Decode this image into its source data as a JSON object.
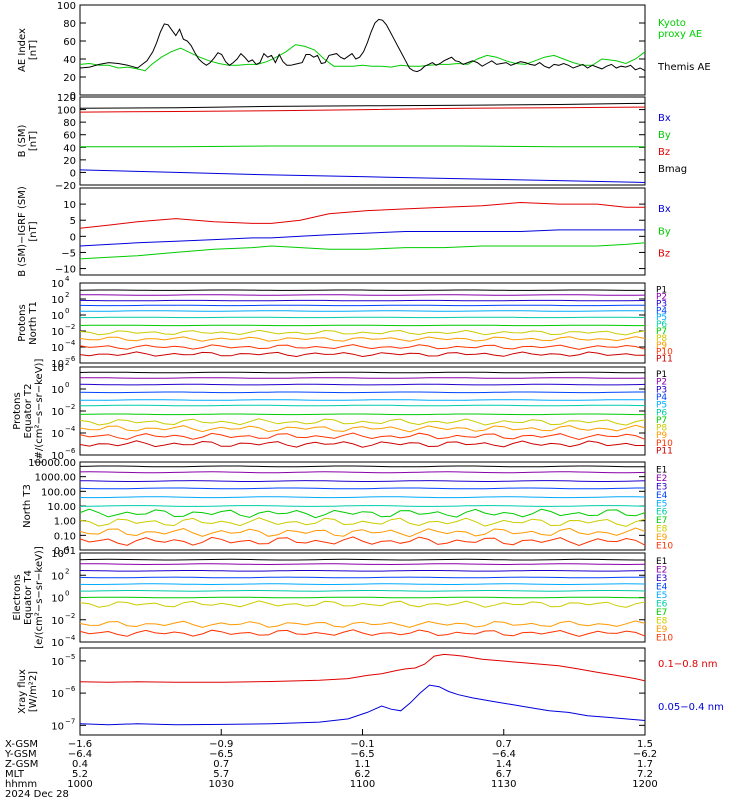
{
  "colors": {
    "black": "#000000",
    "red": "#e00000",
    "green": "#00cc00",
    "blue": "#0000dd",
    "kyoto": "#00dd00",
    "ch": [
      "#000000",
      "#8800aa",
      "#2200cc",
      "#0044ff",
      "#00aaff",
      "#00ccaa",
      "#00cc00",
      "#cccc00",
      "#ff9900",
      "#ff3300",
      "#cc0000",
      "#aa0000"
    ]
  },
  "chart_data": [
    {
      "id": "ae",
      "type": "line",
      "ylabel": [
        "AE Index",
        "[nT]"
      ],
      "ylim": [
        0,
        100
      ],
      "yticks": [
        "100",
        "80",
        "60",
        "40",
        "20",
        "0"
      ],
      "legend": [
        {
          "text": "Kyoto",
          "color": "green"
        },
        {
          "text": "proxy AE",
          "color": "green"
        },
        {
          "text": "Themis AE",
          "color": "black"
        }
      ],
      "series": [
        {
          "name": "Kyoto proxy AE",
          "color": "green",
          "x": [
            0,
            10,
            20,
            30,
            40,
            50,
            60,
            68,
            75,
            85,
            95,
            105,
            115,
            125,
            135,
            145,
            155,
            165,
            175,
            185,
            195,
            205,
            215,
            225,
            235,
            245,
            255,
            265,
            275,
            285,
            295,
            305,
            315,
            325,
            335,
            345,
            355,
            365,
            375,
            385,
            395,
            405,
            415,
            425,
            435,
            445,
            455,
            465,
            475,
            485,
            495,
            505,
            515,
            525,
            535,
            545,
            560,
            570,
            580,
            590
          ],
          "y": [
            34,
            35,
            33,
            33,
            30,
            31,
            29,
            27,
            34,
            42,
            48,
            52,
            47,
            42,
            38,
            35,
            33,
            33,
            34,
            34,
            37,
            42,
            48,
            56,
            54,
            50,
            40,
            32,
            32,
            32,
            33,
            32,
            32,
            31,
            33,
            32,
            32,
            33,
            34,
            34,
            35,
            34,
            40,
            44,
            42,
            38,
            35,
            34,
            38,
            42,
            44,
            40,
            36,
            33,
            33,
            40,
            38,
            35,
            40,
            48
          ]
        },
        {
          "name": "Themis AE",
          "color": "black",
          "x": [
            0,
            10,
            20,
            30,
            40,
            50,
            60,
            70,
            76,
            80,
            84,
            88,
            92,
            96,
            100,
            104,
            108,
            112,
            116,
            120,
            124,
            128,
            132,
            136,
            140,
            144,
            148,
            152,
            156,
            160,
            164,
            168,
            172,
            176,
            180,
            184,
            188,
            192,
            196,
            200,
            204,
            208,
            212,
            216,
            220,
            224,
            228,
            232,
            236,
            240,
            244,
            248,
            252,
            256,
            260,
            264,
            268,
            272,
            276,
            280,
            284,
            288,
            292,
            296,
            300,
            304,
            308,
            312,
            316,
            320,
            324,
            328,
            332,
            336,
            340,
            344,
            348,
            352,
            356,
            360,
            364,
            368,
            372,
            376,
            380,
            384,
            388,
            392,
            396,
            400,
            405,
            410,
            415,
            420,
            425,
            430,
            435,
            440,
            445,
            450,
            455,
            460,
            465,
            470,
            475,
            480,
            485,
            490,
            495,
            500,
            505,
            510,
            515,
            520,
            525,
            530,
            535,
            540,
            545,
            550,
            555,
            560,
            565,
            570,
            575,
            580,
            585,
            590
          ],
          "y": [
            30,
            31,
            34,
            36,
            35,
            33,
            30,
            38,
            48,
            58,
            70,
            79,
            78,
            72,
            66,
            73,
            62,
            60,
            55,
            47,
            40,
            36,
            33,
            36,
            41,
            47,
            45,
            37,
            33,
            36,
            40,
            46,
            42,
            37,
            39,
            34,
            36,
            46,
            42,
            44,
            36,
            45,
            37,
            33,
            33,
            34,
            35,
            36,
            45,
            45,
            42,
            44,
            35,
            36,
            44,
            45,
            46,
            42,
            40,
            43,
            46,
            40,
            42,
            48,
            58,
            70,
            80,
            84,
            83,
            78,
            70,
            62,
            54,
            46,
            38,
            30,
            27,
            26,
            28,
            32,
            34,
            36,
            33,
            35,
            38,
            40,
            42,
            38,
            37,
            34,
            36,
            38,
            36,
            32,
            35,
            38,
            34,
            35,
            36,
            33,
            35,
            37,
            36,
            34,
            33,
            36,
            32,
            30,
            34,
            33,
            35,
            33,
            30,
            32,
            34,
            30,
            33,
            31,
            29,
            32,
            34,
            30,
            32,
            31,
            33,
            28,
            30,
            27
          ]
        }
      ]
    },
    {
      "id": "bsm",
      "type": "line",
      "ylabel": [
        "B  (SM)",
        "[nT]"
      ],
      "ylabel_sub": "s",
      "ylim": [
        -20,
        120
      ],
      "yticks": [
        "120",
        "100",
        "80",
        "60",
        "40",
        "20",
        "0",
        "−20"
      ],
      "legend": [
        {
          "text": "Bx",
          "color": "blue"
        },
        {
          "text": "By",
          "color": "green"
        },
        {
          "text": "Bz",
          "color": "red"
        },
        {
          "text": "Bmag",
          "color": "black"
        }
      ],
      "series": [
        {
          "name": "Bmag",
          "color": "black",
          "x": [
            0,
            100,
            200,
            300,
            400,
            500,
            590
          ],
          "y": [
            102,
            103,
            105,
            106,
            107,
            108,
            110
          ]
        },
        {
          "name": "Bz",
          "color": "red",
          "x": [
            0,
            100,
            200,
            300,
            400,
            500,
            590
          ],
          "y": [
            96,
            97,
            98,
            100,
            102,
            103,
            104
          ]
        },
        {
          "name": "By",
          "color": "green",
          "x": [
            0,
            100,
            200,
            300,
            400,
            500,
            590
          ],
          "y": [
            41,
            41,
            42,
            42,
            42,
            41,
            41
          ]
        },
        {
          "name": "Bx",
          "color": "blue",
          "x": [
            0,
            100,
            200,
            300,
            400,
            500,
            590
          ],
          "y": [
            4,
            0,
            -4,
            -7,
            -10,
            -13,
            -16
          ]
        }
      ]
    },
    {
      "id": "bigrf",
      "type": "line",
      "ylabel": [
        "B (SM)−IGRF (SM)",
        "[nT]"
      ],
      "ylim": [
        -12,
        15
      ],
      "yticks": [
        "10",
        "5",
        "0",
        "−5",
        "−10"
      ],
      "legend": [
        {
          "text": "Bx",
          "color": "blue"
        },
        {
          "text": "By",
          "color": "green"
        },
        {
          "text": "Bz",
          "color": "red"
        }
      ],
      "series": [
        {
          "name": "Bz",
          "color": "red",
          "x": [
            0,
            30,
            60,
            100,
            140,
            180,
            200,
            230,
            260,
            300,
            340,
            380,
            420,
            460,
            500,
            540,
            570,
            590
          ],
          "y": [
            2.5,
            3.5,
            4.5,
            5.5,
            4.5,
            4,
            4,
            5,
            7,
            8,
            8.5,
            9,
            9.5,
            10.5,
            10,
            10,
            9,
            9
          ]
        },
        {
          "name": "By",
          "color": "green",
          "x": [
            0,
            30,
            60,
            100,
            140,
            180,
            200,
            230,
            260,
            300,
            340,
            380,
            420,
            460,
            500,
            540,
            570,
            590
          ],
          "y": [
            -7,
            -6.5,
            -6,
            -5,
            -4,
            -3.5,
            -3,
            -3.5,
            -4,
            -4,
            -3.5,
            -3.5,
            -3,
            -3,
            -3,
            -3,
            -2.5,
            -2
          ]
        },
        {
          "name": "Bx",
          "color": "blue",
          "x": [
            0,
            30,
            60,
            100,
            140,
            180,
            200,
            230,
            260,
            300,
            340,
            380,
            420,
            460,
            500,
            540,
            570,
            590
          ],
          "y": [
            -3,
            -2.5,
            -2,
            -1.5,
            -1,
            -0.5,
            -0.5,
            0,
            0.5,
            1,
            1.5,
            1.5,
            1.5,
            1.5,
            2,
            2,
            2,
            2
          ]
        }
      ]
    },
    {
      "id": "pn",
      "type": "line",
      "log": true,
      "ylabel": [
        "Protons",
        "North T1"
      ],
      "ylim": [
        -6,
        4
      ],
      "yticks": [
        {
          "e": "4",
          "v": 4
        },
        {
          "e": "2",
          "v": 2
        },
        {
          "e": "0",
          "v": 0
        },
        {
          "e": "−2",
          "v": -2
        },
        {
          "e": "−4",
          "v": -4
        },
        {
          "e": "−6",
          "v": -6
        }
      ],
      "labels": [
        "P1",
        "P2",
        "P3",
        "P4",
        "P5",
        "P6",
        "P7",
        "P8",
        "P9",
        "P10",
        "P11"
      ],
      "series_levels": [
        3.1,
        2.5,
        1.8,
        1.2,
        0.5,
        -0.3,
        -1.3,
        -2.2,
        -3.0,
        -4.0,
        -4.9
      ]
    },
    {
      "id": "pe",
      "type": "line",
      "log": true,
      "ylabel": [
        "Protons",
        "Equator T2",
        "[#/(cm²−s−sr−keV)]"
      ],
      "ylim": [
        -6,
        2
      ],
      "yticks": [
        {
          "e": "2",
          "v": 2
        },
        {
          "e": "0",
          "v": 0
        },
        {
          "e": "−2",
          "v": -2
        },
        {
          "e": "−4",
          "v": -4
        },
        {
          "e": "−6",
          "v": -6
        }
      ],
      "labels": [
        "P1",
        "P2",
        "P3",
        "P4",
        "P5",
        "P6",
        "P7",
        "P8",
        "P9",
        "P10",
        "P11"
      ],
      "series_levels": [
        1.5,
        1.0,
        0.4,
        -0.3,
        -1.0,
        -1.5,
        -2.3,
        -3.0,
        -3.6,
        -4.3,
        -5.0
      ]
    },
    {
      "id": "en",
      "type": "line",
      "log": true,
      "ylabel": [
        "North T3"
      ],
      "ylim": [
        -2,
        4
      ],
      "yticks": [
        "10000.00",
        "1000.00",
        "100.00",
        "10.00",
        "1.00",
        "0.10",
        "0.01"
      ],
      "labels": [
        "E1",
        "E2",
        "E3",
        "E4",
        "E5",
        "E6",
        "E7",
        "E8",
        "E9",
        "E10"
      ],
      "series_levels": [
        3.7,
        3.3,
        2.7,
        2.2,
        1.6,
        1.0,
        0.5,
        -0.1,
        -0.8,
        -1.4
      ]
    },
    {
      "id": "ee",
      "type": "line",
      "log": true,
      "ylabel": [
        "Electrons",
        "Equator T4",
        "[e/(cm²−s−sr−keV)]"
      ],
      "ylim": [
        -4,
        4
      ],
      "yticks": [
        {
          "e": "4",
          "v": 4
        },
        {
          "e": "2",
          "v": 2
        },
        {
          "e": "0",
          "v": 0
        },
        {
          "e": "−2",
          "v": -2
        },
        {
          "e": "−4",
          "v": -4
        }
      ],
      "labels": [
        "E1",
        "E2",
        "E3",
        "E4",
        "E5",
        "E6",
        "E7",
        "E8",
        "E9",
        "E10"
      ],
      "series_levels": [
        3.4,
        3.0,
        2.4,
        1.8,
        1.2,
        0.6,
        0.0,
        -0.6,
        -2.4,
        -3.2
      ]
    },
    {
      "id": "xray",
      "type": "line",
      "log": true,
      "ylabel": [
        "Xray flux",
        "[W/m²2]"
      ],
      "ylim": [
        -7.3,
        -4.6
      ],
      "yticks": [
        {
          "e": "−5",
          "v": -5
        },
        {
          "e": "−6",
          "v": -6
        },
        {
          "e": "−7",
          "v": -7
        }
      ],
      "legend": [
        {
          "text": "0.1−0.8 nm",
          "color": "red"
        },
        {
          "text": "0.05−0.4 nm",
          "color": "blue"
        }
      ],
      "series": [
        {
          "name": "0.1−0.8 nm",
          "color": "red",
          "x": [
            0,
            30,
            60,
            100,
            150,
            200,
            250,
            280,
            300,
            315,
            330,
            340,
            350,
            360,
            370,
            380,
            390,
            400,
            420,
            440,
            460,
            480,
            500,
            520,
            540,
            560,
            580,
            590
          ],
          "y": [
            -5.65,
            -5.66,
            -5.65,
            -5.66,
            -5.66,
            -5.64,
            -5.6,
            -5.55,
            -5.45,
            -5.4,
            -5.3,
            -5.25,
            -5.22,
            -5.1,
            -4.85,
            -4.8,
            -4.82,
            -4.85,
            -4.95,
            -5.0,
            -5.05,
            -5.1,
            -5.15,
            -5.25,
            -5.35,
            -5.45,
            -5.55,
            -5.62
          ]
        },
        {
          "name": "0.05−0.4 nm",
          "color": "blue",
          "x": [
            0,
            30,
            60,
            100,
            150,
            200,
            250,
            280,
            300,
            315,
            325,
            335,
            345,
            355,
            365,
            375,
            385,
            395,
            410,
            430,
            450,
            470,
            490,
            510,
            530,
            550,
            570,
            590
          ],
          "y": [
            -6.95,
            -6.98,
            -6.95,
            -6.98,
            -6.97,
            -6.95,
            -6.9,
            -6.8,
            -6.6,
            -6.4,
            -6.5,
            -6.55,
            -6.3,
            -6.0,
            -5.75,
            -5.8,
            -5.95,
            -6.05,
            -6.15,
            -6.25,
            -6.35,
            -6.45,
            -6.55,
            -6.6,
            -6.7,
            -6.75,
            -6.8,
            -6.85
          ]
        }
      ]
    }
  ],
  "axis_table": {
    "row_labels": [
      "X-GSM",
      "Y-GSM",
      "Z-GSM",
      "MLT",
      "hhmm"
    ],
    "columns": [
      [
        "−1.6",
        "−6.4",
        "0.4",
        "5.2",
        "1000"
      ],
      [
        "−0.9",
        "−6.5",
        "0.7",
        "5.7",
        "1030"
      ],
      [
        "−0.1",
        "−6.5",
        "1.1",
        "6.2",
        "1100"
      ],
      [
        "0.7",
        "−6.4",
        "1.4",
        "6.7",
        "1130"
      ],
      [
        "1.5",
        "−6.2",
        "1.7",
        "7.2",
        "1200"
      ]
    ],
    "date": "2024 Dec 28"
  }
}
